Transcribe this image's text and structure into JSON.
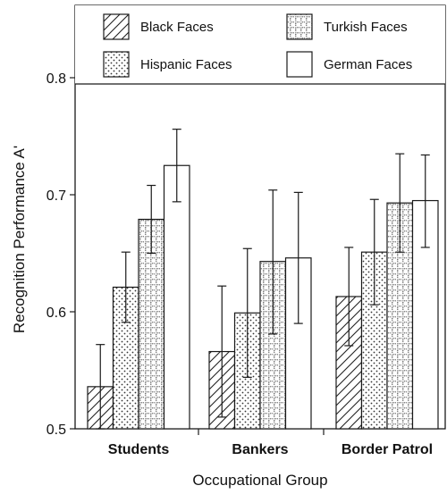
{
  "chart_data": {
    "type": "bar",
    "title": "",
    "xlabel": "Occupational Group",
    "ylabel": "Recognition Performance A'",
    "ylim": [
      0.5,
      0.8
    ],
    "yticks": [
      "0.5",
      "0.6",
      "0.7",
      "0.8"
    ],
    "categories": [
      "Students",
      "Bankers",
      "Border Patrol"
    ],
    "grid": false,
    "legend_position": "top, two columns",
    "series": [
      {
        "name": "Black Faces",
        "pattern": "diagonal-stripes",
        "values": [
          0.536,
          0.566,
          0.613
        ],
        "error_low": [
          0.5,
          0.51,
          0.571
        ],
        "error_high": [
          0.572,
          0.622,
          0.655
        ]
      },
      {
        "name": "Hispanic Faces",
        "pattern": "dots",
        "values": [
          0.621,
          0.599,
          0.651
        ],
        "error_low": [
          0.591,
          0.544,
          0.606
        ],
        "error_high": [
          0.651,
          0.654,
          0.696
        ]
      },
      {
        "name": "Turkish Faces",
        "pattern": "grid",
        "values": [
          0.679,
          0.643,
          0.693
        ],
        "error_low": [
          0.65,
          0.581,
          0.651
        ],
        "error_high": [
          0.708,
          0.704,
          0.735
        ]
      },
      {
        "name": "German Faces",
        "pattern": "none",
        "values": [
          0.725,
          0.646,
          0.695
        ],
        "error_low": [
          0.694,
          0.59,
          0.655
        ],
        "error_high": [
          0.756,
          0.702,
          0.734
        ]
      }
    ]
  },
  "colors": {
    "stroke": "#1a1a1a",
    "fill": "#ffffff",
    "text": "#111111"
  }
}
